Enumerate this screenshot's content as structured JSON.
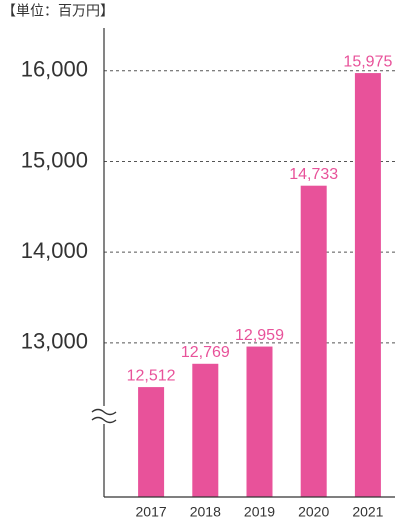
{
  "chart_data": {
    "type": "bar",
    "unit_label": "【単位：百万円】",
    "categories": [
      "2017",
      "2018",
      "2019",
      "2020",
      "2021"
    ],
    "values": [
      12512,
      12769,
      12959,
      14733,
      15975
    ],
    "value_labels": [
      "12,512",
      "12,769",
      "12,959",
      "14,733",
      "15,975"
    ],
    "color": "#e8529a",
    "ylim": [
      11300,
      16450
    ],
    "yticks": [
      {
        "value": 13000,
        "label": "13,000"
      },
      {
        "value": 14000,
        "label": "14,000"
      },
      {
        "value": 15000,
        "label": "15,000"
      },
      {
        "value": 16000,
        "label": "16,000"
      }
    ],
    "grid": true
  }
}
